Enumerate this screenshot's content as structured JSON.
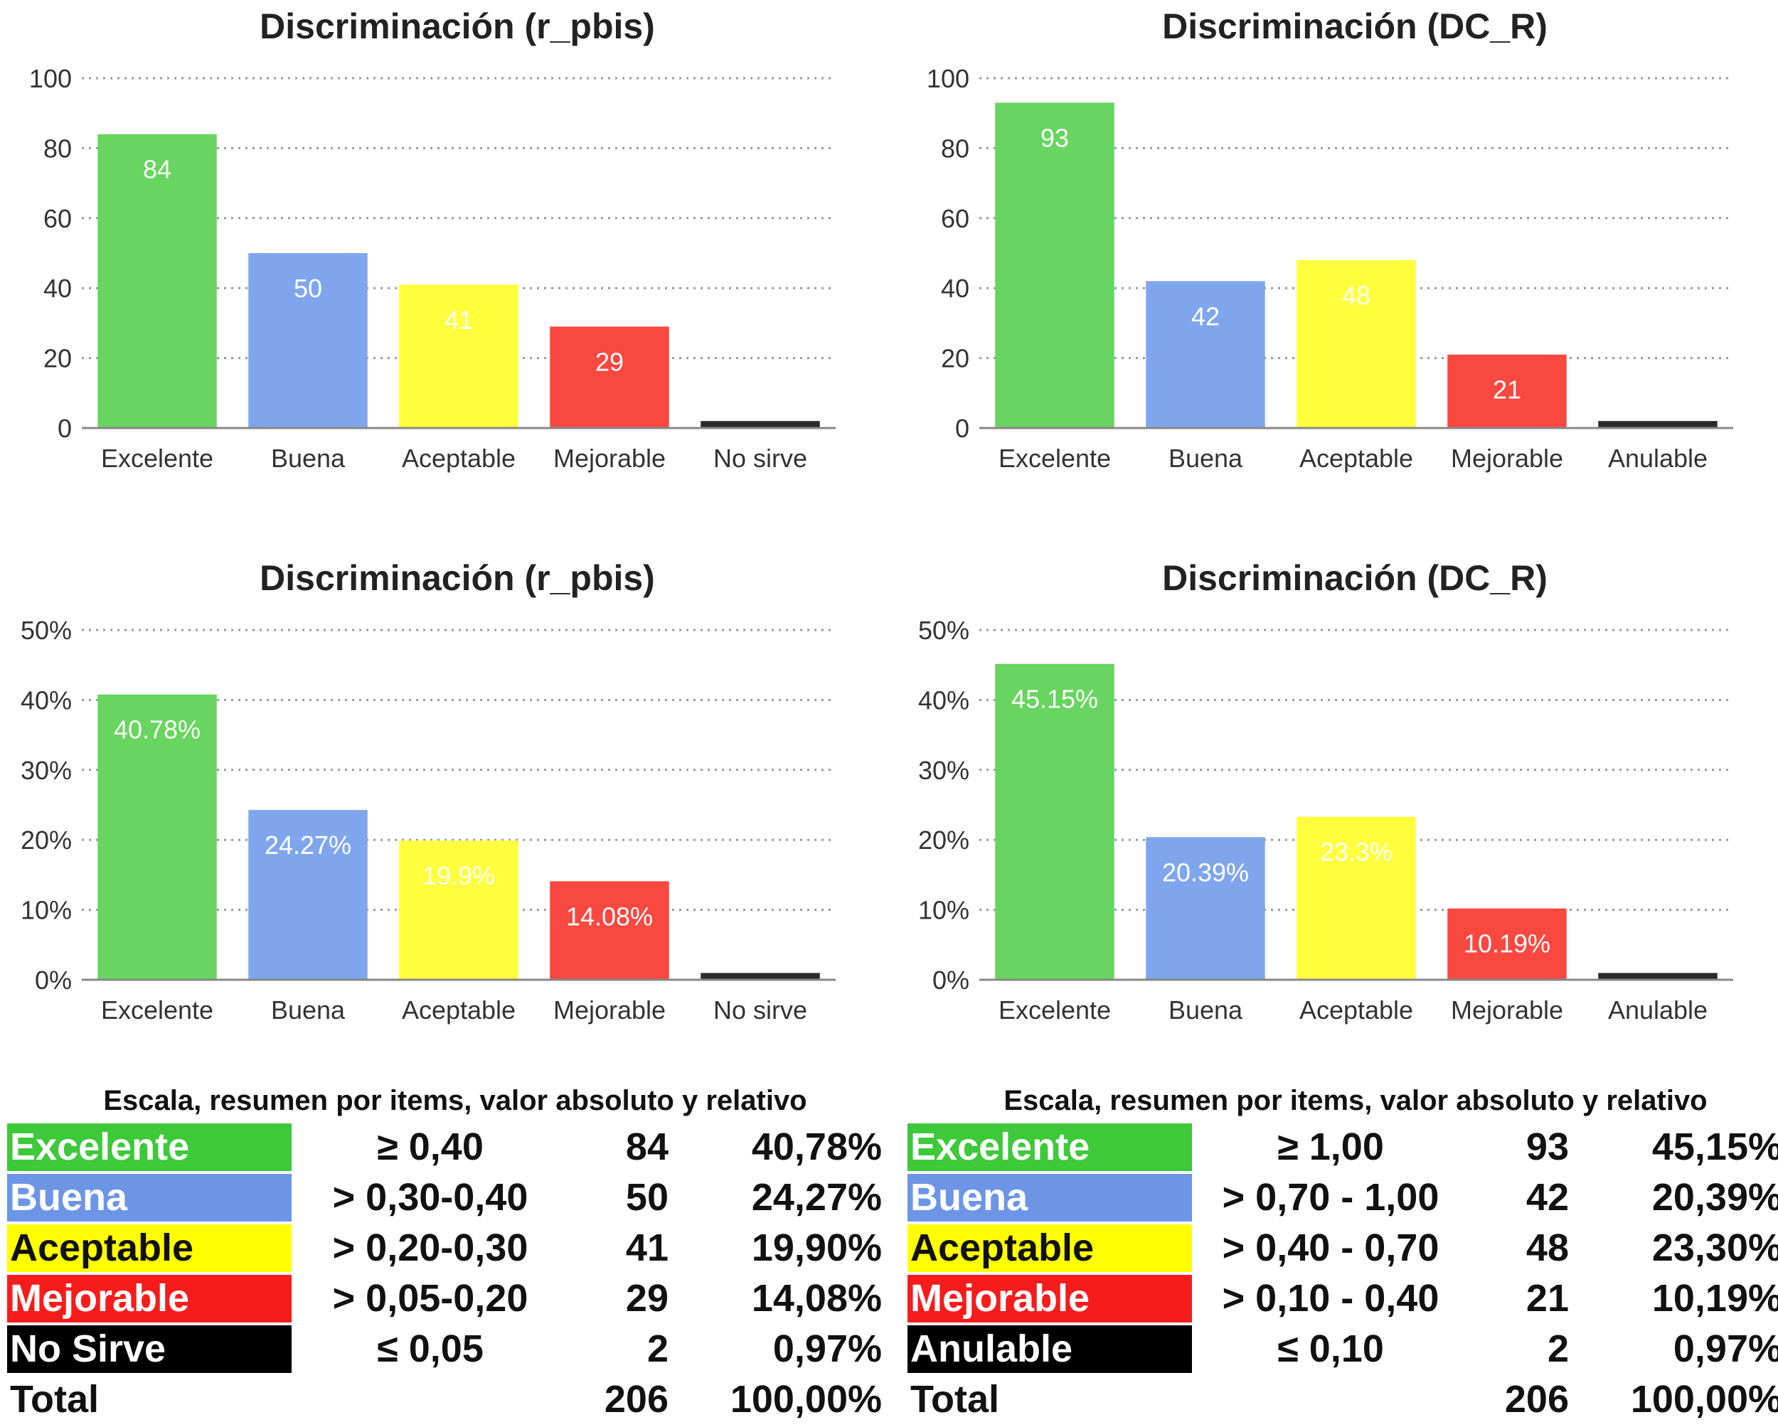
{
  "chart_data": [
    {
      "type": "bar",
      "title": "Discriminación (r_pbis)",
      "categories": [
        "Excelente",
        "Buena",
        "Aceptable",
        "Mejorable",
        "No sirve"
      ],
      "values": [
        84,
        50,
        41,
        29,
        2
      ],
      "value_labels": [
        "84",
        "50",
        "41",
        "29",
        ""
      ],
      "colors": [
        "#67d55f",
        "#7fa6ec",
        "#ffff3e",
        "#f94840",
        "#2a2a2a"
      ],
      "ylim": [
        0,
        100
      ],
      "yticks": [
        0,
        20,
        40,
        60,
        80,
        100
      ],
      "ytick_labels": [
        "0",
        "20",
        "40",
        "60",
        "80",
        "100"
      ],
      "xlabel": "",
      "ylabel": "",
      "grid": true
    },
    {
      "type": "bar",
      "title": "Discriminación (DC_R)",
      "categories": [
        "Excelente",
        "Buena",
        "Aceptable",
        "Mejorable",
        "Anulable"
      ],
      "values": [
        93,
        42,
        48,
        21,
        2
      ],
      "value_labels": [
        "93",
        "42",
        "48",
        "21",
        ""
      ],
      "colors": [
        "#67d55f",
        "#7fa6ec",
        "#ffff3e",
        "#f94840",
        "#2a2a2a"
      ],
      "ylim": [
        0,
        100
      ],
      "yticks": [
        0,
        20,
        40,
        60,
        80,
        100
      ],
      "ytick_labels": [
        "0",
        "20",
        "40",
        "60",
        "80",
        "100"
      ],
      "xlabel": "",
      "ylabel": "",
      "grid": true
    },
    {
      "type": "bar",
      "title": "Discriminación (r_pbis)",
      "categories": [
        "Excelente",
        "Buena",
        "Aceptable",
        "Mejorable",
        "No sirve"
      ],
      "values": [
        40.78,
        24.27,
        19.9,
        14.08,
        0.97
      ],
      "value_labels": [
        "40.78%",
        "24.27%",
        "19.9%",
        "14.08%",
        ""
      ],
      "colors": [
        "#67d55f",
        "#7fa6ec",
        "#ffff3e",
        "#f94840",
        "#2a2a2a"
      ],
      "ylim": [
        0,
        50
      ],
      "yticks": [
        0,
        10,
        20,
        30,
        40,
        50
      ],
      "ytick_labels": [
        "0%",
        "10%",
        "20%",
        "30%",
        "40%",
        "50%"
      ],
      "xlabel": "",
      "ylabel": "",
      "grid": true
    },
    {
      "type": "bar",
      "title": "Discriminación (DC_R)",
      "categories": [
        "Excelente",
        "Buena",
        "Aceptable",
        "Mejorable",
        "Anulable"
      ],
      "values": [
        45.15,
        20.39,
        23.3,
        10.19,
        0.97
      ],
      "value_labels": [
        "45.15%",
        "20.39%",
        "23.3%",
        "10.19%",
        ""
      ],
      "colors": [
        "#67d55f",
        "#7fa6ec",
        "#ffff3e",
        "#f94840",
        "#2a2a2a"
      ],
      "ylim": [
        0,
        50
      ],
      "yticks": [
        0,
        10,
        20,
        30,
        40,
        50
      ],
      "ytick_labels": [
        "0%",
        "10%",
        "20%",
        "30%",
        "40%",
        "50%"
      ],
      "xlabel": "",
      "ylabel": "",
      "grid": true
    }
  ],
  "tables": [
    {
      "caption": "Escala, resumen por items, valor absoluto y relativo",
      "rows": [
        {
          "label": "Excelente",
          "range": "≥ 0,40",
          "count": "84",
          "pct": "40,78%",
          "bg": "#3dc93a",
          "fg": "#ffffff"
        },
        {
          "label": "Buena",
          "range": "> 0,30-0,40",
          "count": "50",
          "pct": "24,27%",
          "bg": "#6c95e6",
          "fg": "#ffffff"
        },
        {
          "label": "Aceptable",
          "range": "> 0,20-0,30",
          "count": "41",
          "pct": "19,90%",
          "bg": "#ffff00",
          "fg": "#111111"
        },
        {
          "label": "Mejorable",
          "range": "> 0,05-0,20",
          "count": "29",
          "pct": "14,08%",
          "bg": "#f71c1c",
          "fg": "#ffffff"
        },
        {
          "label": "No Sirve",
          "range": "≤ 0,05",
          "count": "2",
          "pct": "0,97%",
          "bg": "#000000",
          "fg": "#ffffff"
        }
      ],
      "total": {
        "label": "Total",
        "count": "206",
        "pct": "100,00%"
      }
    },
    {
      "caption": "Escala, resumen por items, valor absoluto y relativo",
      "rows": [
        {
          "label": "Excelente",
          "range": "≥ 1,00",
          "count": "93",
          "pct": "45,15%",
          "bg": "#3dc93a",
          "fg": "#ffffff"
        },
        {
          "label": "Buena",
          "range": "> 0,70 - 1,00",
          "count": "42",
          "pct": "20,39%",
          "bg": "#6c95e6",
          "fg": "#ffffff"
        },
        {
          "label": "Aceptable",
          "range": "> 0,40 - 0,70",
          "count": "48",
          "pct": "23,30%",
          "bg": "#ffff00",
          "fg": "#111111"
        },
        {
          "label": "Mejorable",
          "range": "> 0,10 - 0,40",
          "count": "21",
          "pct": "10,19%",
          "bg": "#f71c1c",
          "fg": "#ffffff"
        },
        {
          "label": "Anulable",
          "range": "≤ 0,10",
          "count": "2",
          "pct": "0,97%",
          "bg": "#000000",
          "fg": "#ffffff"
        }
      ],
      "total": {
        "label": "Total",
        "count": "206",
        "pct": "100,00%"
      }
    }
  ]
}
